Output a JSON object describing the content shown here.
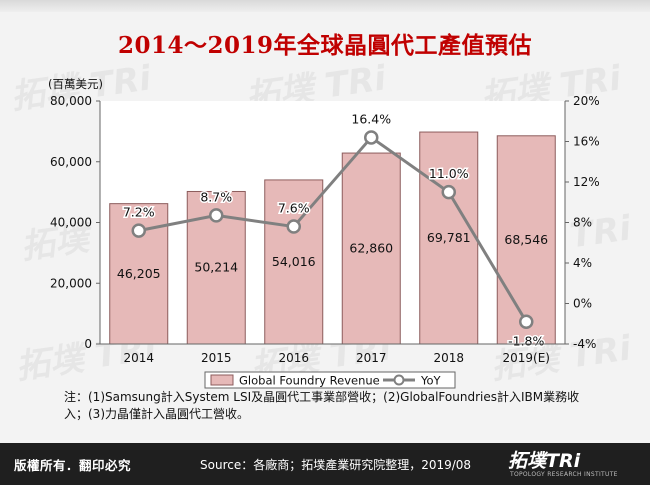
{
  "title": "2014～2019年全球晶圓代工產值預估",
  "watermark_text": "拓墣 TRi",
  "chart_data": {
    "type": "bar",
    "categories": [
      "2014",
      "2015",
      "2016",
      "2017",
      "2018",
      "2019(E)"
    ],
    "series": [
      {
        "name": "Global Foundry Revenue",
        "type": "bar",
        "axis": "left",
        "values": [
          46205,
          50214,
          54016,
          62860,
          69781,
          68546
        ],
        "labels": [
          "46,205",
          "50,214",
          "54,016",
          "62,860",
          "69,781",
          "68,546"
        ]
      },
      {
        "name": "YoY",
        "type": "line",
        "axis": "right",
        "values": [
          7.2,
          8.7,
          7.6,
          16.4,
          11.0,
          -1.8
        ],
        "labels": [
          "7.2%",
          "8.7%",
          "7.6%",
          "16.4%",
          "11.0%",
          "-1.8%"
        ]
      }
    ],
    "y_left_unit": "(百萬美元)",
    "y_left_range": [
      0,
      80000
    ],
    "y_left_ticks": [
      "0",
      "20,000",
      "40,000",
      "60,000",
      "80,000"
    ],
    "y_right_range": [
      -4,
      20
    ],
    "y_right_ticks": [
      "-4%",
      "0%",
      "4%",
      "8%",
      "12%",
      "16%",
      "20%"
    ],
    "grid": false,
    "legend_position": "bottom",
    "colors": {
      "bar_fill": "#e6b9b8",
      "bar_stroke": "#8c5c5c",
      "line": "#808080",
      "marker_fill": "#ffffff"
    }
  },
  "note": "注：(1)Samsung計入System LSI及晶圓代工事業部營收；(2)GlobalFoundries計入IBM業務收入；(3)力晶僅計入晶圓代工營收。",
  "footer": {
    "rights": "版權所有．翻印必究",
    "source": "Source：各廠商；拓墣產業研究院整理，2019/08"
  },
  "logo": {
    "main": "拓墣TRi",
    "sub": "TOPOLOGY RESEARCH INSTITUTE"
  }
}
